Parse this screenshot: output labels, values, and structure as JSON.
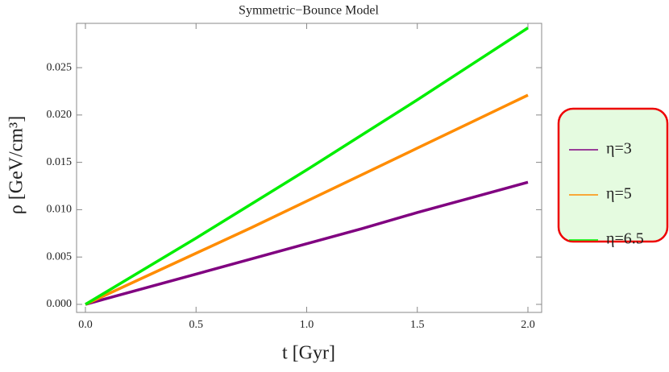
{
  "chart_data": {
    "type": "line",
    "title": "Symmetric−Bounce Model",
    "x_label": "t [Gyr]",
    "y_label": "ρ [GeV/cm³]",
    "x": [
      0,
      0.25,
      0.5,
      0.75,
      1.0,
      1.25,
      1.5,
      1.75,
      2.0
    ],
    "series": [
      {
        "name": "η=3",
        "color": "#800080",
        "values": [
          0,
          0.0016,
          0.0032,
          0.0048,
          0.0064,
          0.008,
          0.0097,
          0.0113,
          0.0129
        ]
      },
      {
        "name": "η=5",
        "color": "#ff8c00",
        "values": [
          0,
          0.0027,
          0.0054,
          0.0081,
          0.0109,
          0.0137,
          0.0165,
          0.0193,
          0.0221
        ]
      },
      {
        "name": "η=6.5",
        "color": "#00ee00",
        "values": [
          0,
          0.0035,
          0.007,
          0.0106,
          0.0142,
          0.0179,
          0.0216,
          0.0254,
          0.0292
        ]
      }
    ],
    "xlim": [
      -0.04,
      2.062
    ],
    "ylim": [
      -0.00085,
      0.02968
    ],
    "xticks": [
      {
        "value": 0,
        "label": "0.0"
      },
      0.5,
      {
        "value": 1,
        "label": "1.0"
      },
      1.5,
      {
        "value": 2,
        "label": "2.0"
      }
    ],
    "yticks": [
      {
        "value": 0,
        "label": "0.000"
      },
      0.005,
      {
        "value": 0.01,
        "label": "0.010"
      },
      0.015,
      {
        "value": 0.02,
        "label": "0.020"
      },
      0.025
    ],
    "grid": false,
    "legend_position": "right"
  }
}
